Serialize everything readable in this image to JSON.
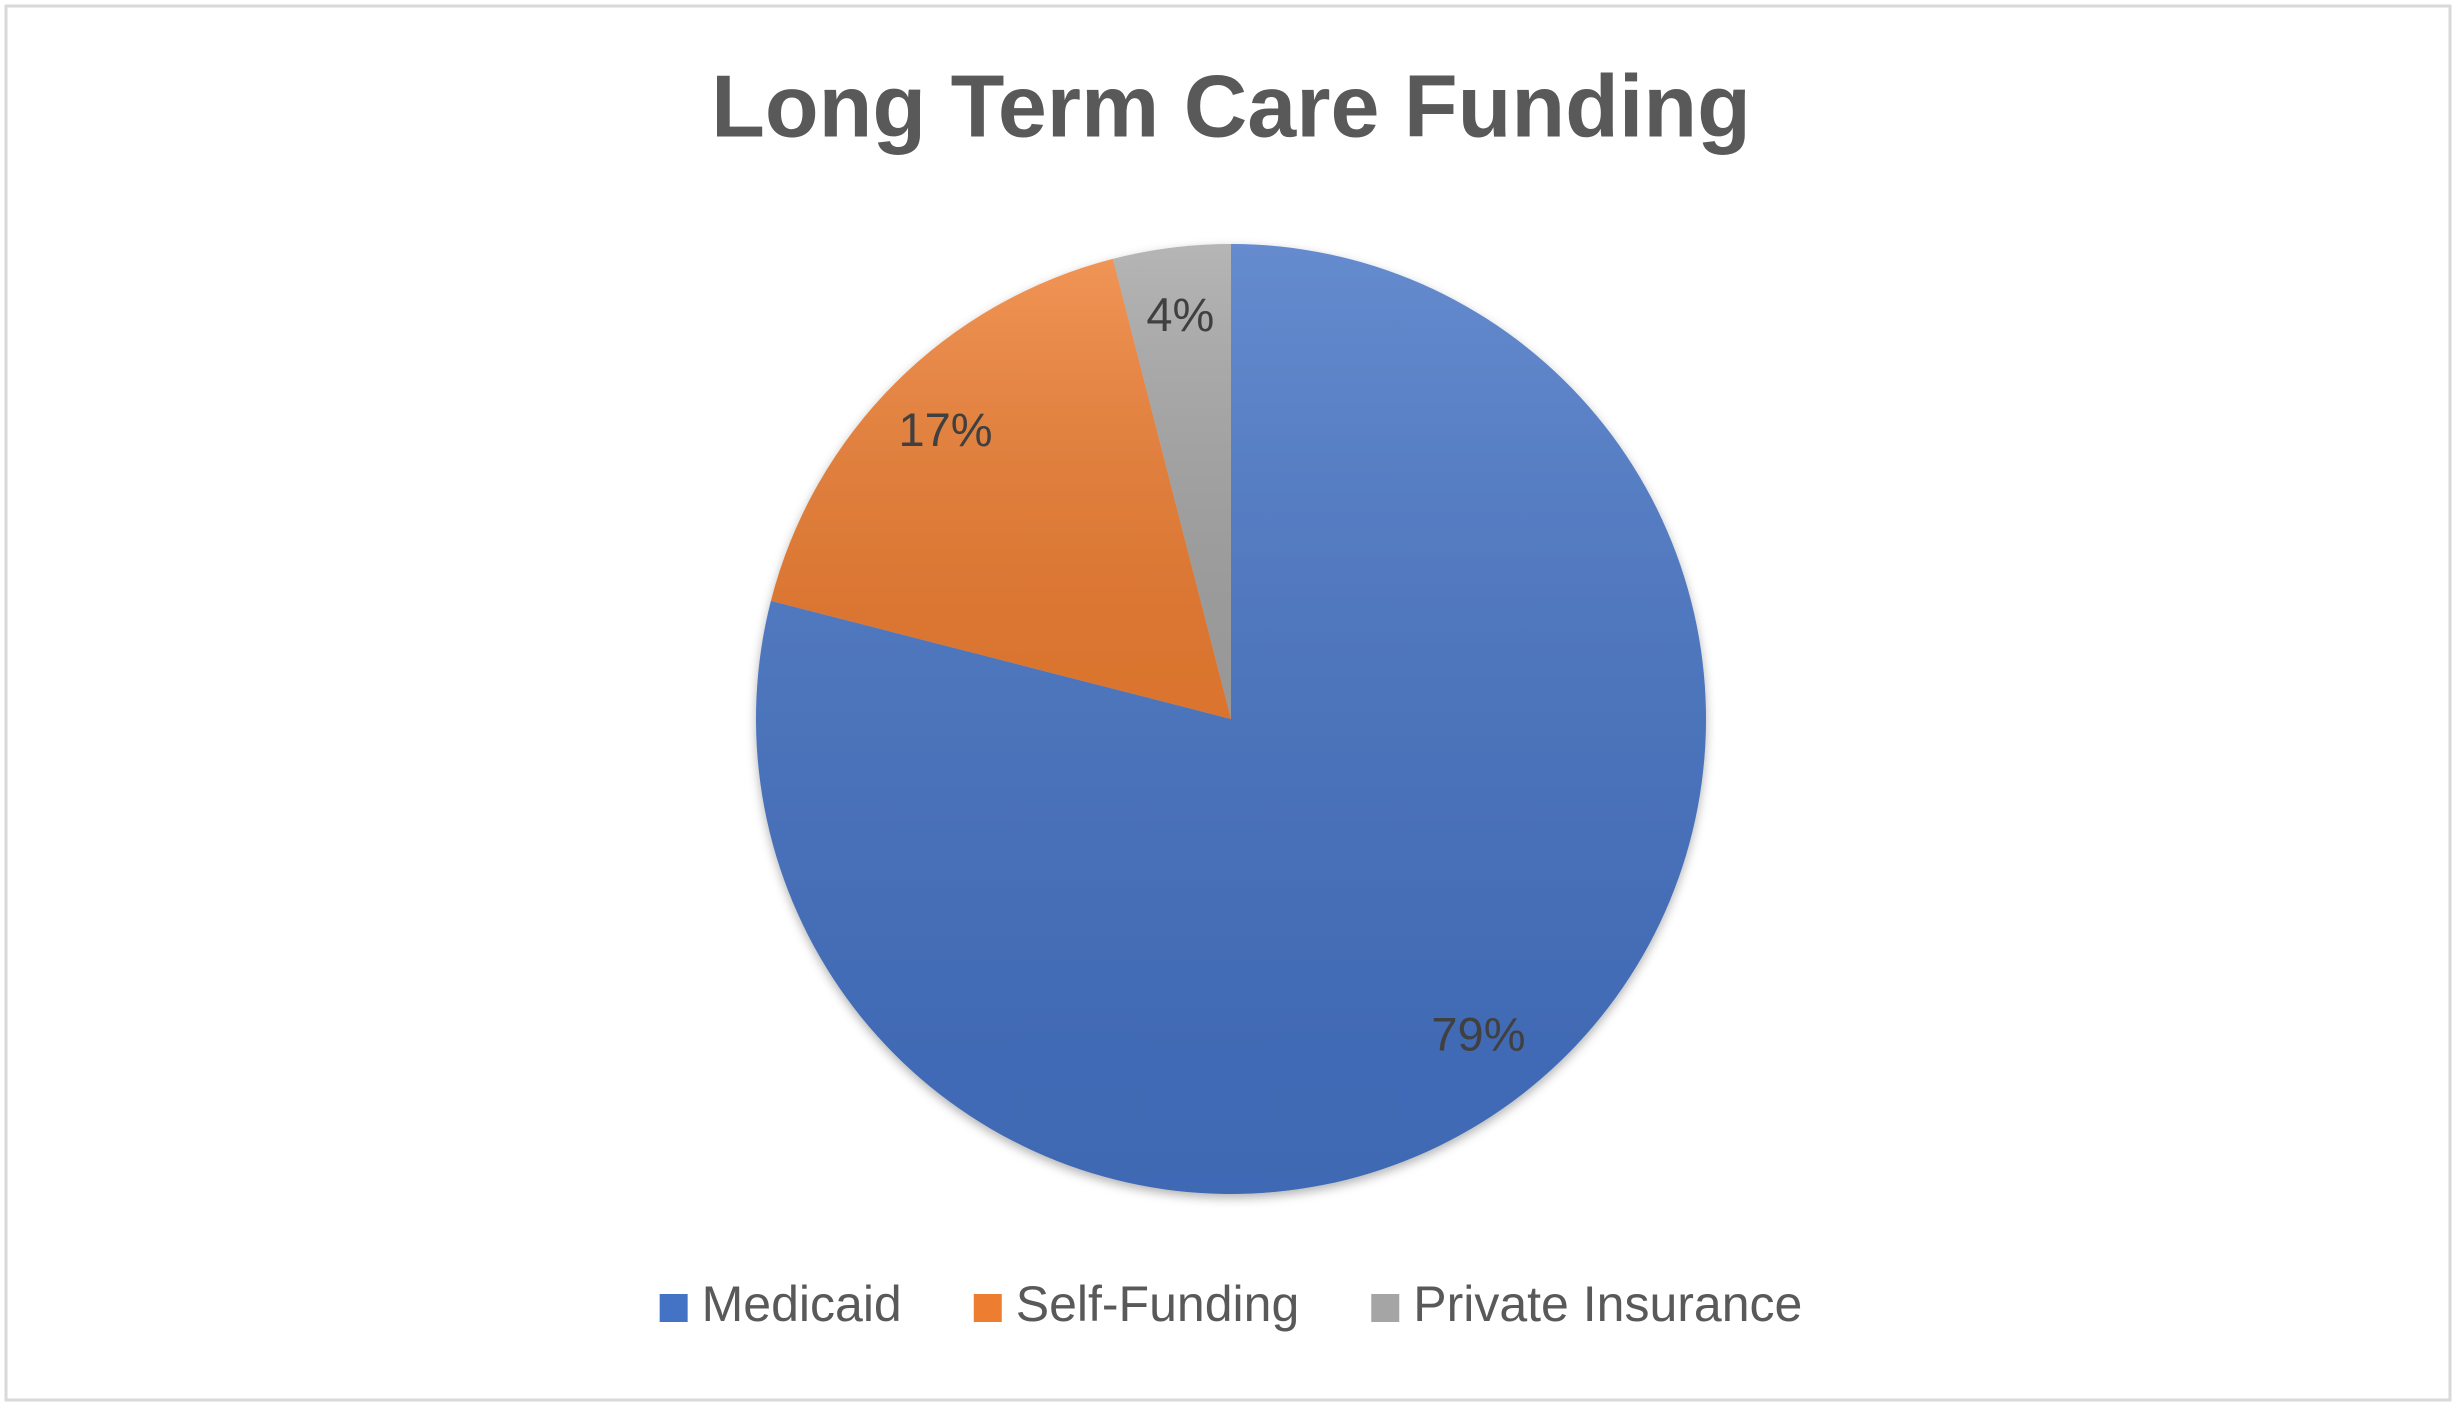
{
  "chart_data": {
    "type": "pie",
    "title": "Long Term Care Funding",
    "categories": [
      "Medicaid",
      "Self-Funding",
      "Private Insurance"
    ],
    "values": [
      79,
      17,
      4
    ],
    "value_labels": [
      "79%",
      "17%",
      "4%"
    ],
    "colors": [
      "#4472c4",
      "#ed7d31",
      "#a5a5a5"
    ],
    "legend": "bottom"
  }
}
